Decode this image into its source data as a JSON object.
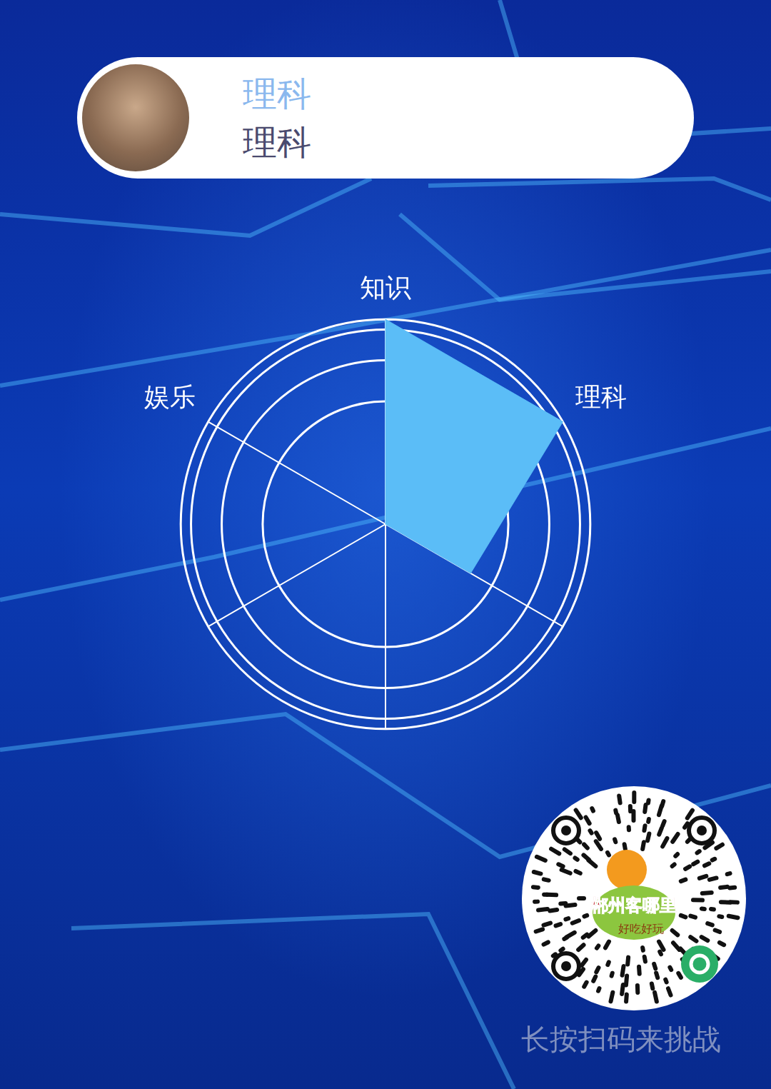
{
  "header": {
    "name": "理科",
    "subtitle": "理科"
  },
  "chart_data": {
    "type": "radar",
    "categories": [
      "知识",
      "理科",
      null,
      null,
      null,
      "娱乐"
    ],
    "values": [
      100,
      100,
      48,
      0,
      0,
      0
    ],
    "color": "#5bbdf7",
    "ylim": [
      0,
      100
    ],
    "yticks": [
      40,
      60,
      80,
      95,
      100
    ],
    "grid": true,
    "tick_labels": false
  },
  "footer": {
    "qr_title": "郴州客哪里",
    "qr_slogan": "好吃好玩",
    "caption": "长按扫码来挑战"
  }
}
